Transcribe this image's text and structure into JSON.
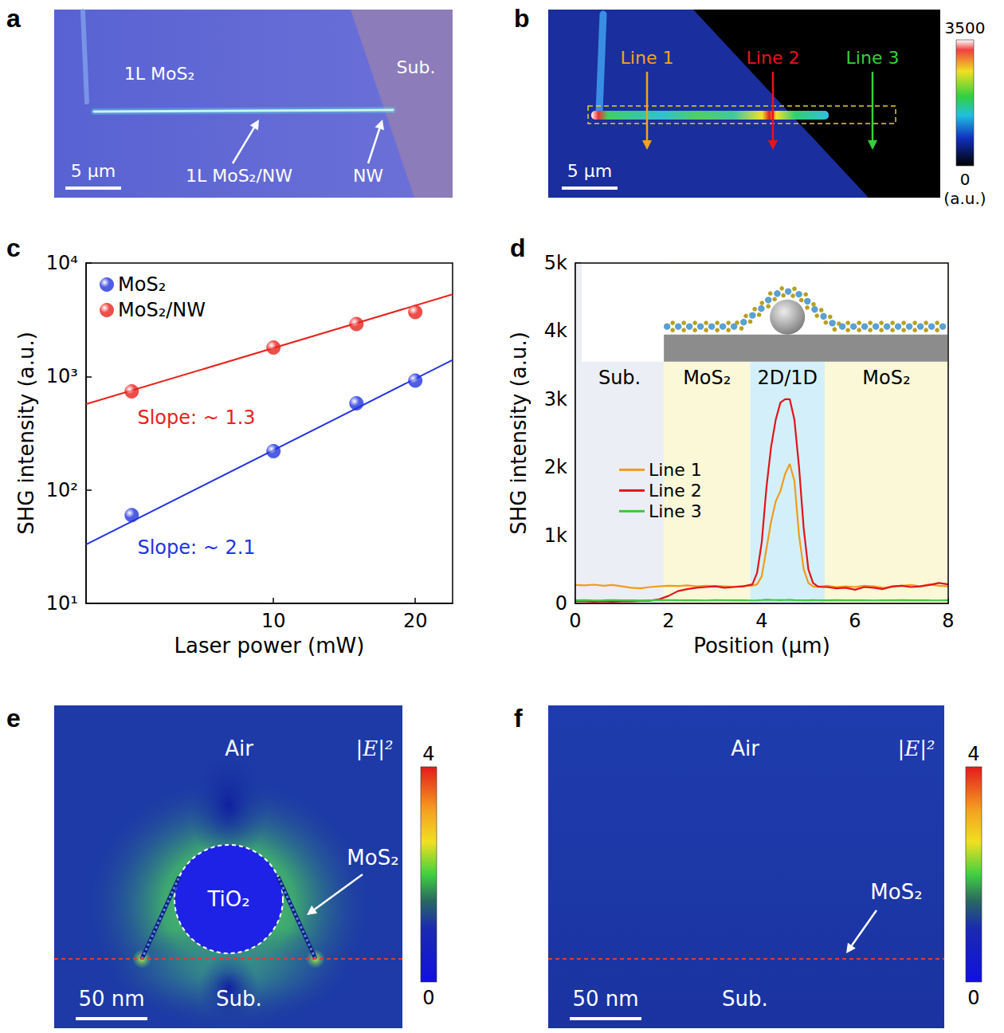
{
  "panel_a": {
    "panel": "a",
    "labels": {
      "layer": "1L MoS₂",
      "substrate": "Sub.",
      "heterostructure": "1L MoS₂/NW",
      "wire": "NW"
    },
    "scale_bar": "5 μm"
  },
  "panel_b": {
    "panel": "b",
    "lines": [
      {
        "name": "Line 1",
        "color": "#f5a21e"
      },
      {
        "name": "Line 2",
        "color": "#e8141c"
      },
      {
        "name": "Line 3",
        "color": "#38d03a"
      }
    ],
    "scale_bar": "5 μm",
    "colorbar": {
      "range": [
        0,
        3500
      ],
      "ticks": [
        0,
        3500
      ],
      "unit": "(a.u.)"
    }
  },
  "chart_data": [
    {
      "panel": "c",
      "type": "scatter",
      "log": true,
      "grid": false,
      "legend": "upper left",
      "x_label": "Laser power (mW)",
      "y_label": "SHG intensity (a.u.)",
      "xlim": [
        4,
        24
      ],
      "xticks": [
        10,
        20
      ],
      "ylim": [
        10,
        10000
      ],
      "yticks": [
        {
          "value": 10,
          "label": "10¹"
        },
        {
          "value": 100,
          "label": "10²"
        },
        {
          "value": 1000,
          "label": "10³"
        },
        {
          "value": 10000,
          "label": "10⁴"
        }
      ],
      "series": [
        {
          "name": "MoS₂",
          "color": "#2233e0",
          "marker": "circle",
          "x": [
            5,
            10,
            15,
            20
          ],
          "values": [
            60,
            220,
            580,
            920
          ]
        },
        {
          "name": "MoS₂/NW",
          "color": "#e8221c",
          "marker": "circle",
          "x": [
            5,
            10,
            15,
            20
          ],
          "values": [
            740,
            1800,
            2900,
            3700
          ]
        }
      ],
      "fits": [
        {
          "label": "Slope: ~ 1.3",
          "color": "#e8221c",
          "x": [
            4,
            24
          ],
          "values": [
            570,
            5300
          ]
        },
        {
          "label": "Slope: ~ 2.1",
          "color": "#2233e0",
          "x": [
            4,
            24
          ],
          "values": [
            33,
            1400
          ]
        }
      ]
    },
    {
      "panel": "d",
      "type": "line",
      "grid": false,
      "legend": "left",
      "x_label": "Position (μm)",
      "y_label": "SHG intensity (a.u.)",
      "xlim": [
        0,
        8
      ],
      "xticks": [
        0,
        2,
        4,
        6,
        8
      ],
      "ylim": [
        0,
        5000
      ],
      "yticks": [
        0,
        {
          "value": 1000,
          "label": "1k"
        },
        {
          "value": 2000,
          "label": "2k"
        },
        {
          "value": 3000,
          "label": "3k"
        },
        {
          "value": 4000,
          "label": "4k"
        },
        {
          "value": 5000,
          "label": "5k"
        }
      ],
      "regions": [
        {
          "label": "Sub.",
          "range": [
            0,
            1.9
          ],
          "color": "#eceef5"
        },
        {
          "label": "MoS₂",
          "range": [
            1.9,
            3.75
          ],
          "color": "#fbf8d8"
        },
        {
          "label": "2D/1D",
          "range": [
            3.75,
            5.35
          ],
          "color": "#d3f0fa"
        },
        {
          "label": "MoS₂",
          "range": [
            5.35,
            8
          ],
          "color": "#fbf8d8"
        }
      ],
      "x": [
        0,
        0.2,
        0.4,
        0.6,
        0.8,
        1,
        1.2,
        1.4,
        1.6,
        1.8,
        2,
        2.2,
        2.4,
        2.6,
        2.8,
        3,
        3.2,
        3.4,
        3.6,
        3.8,
        3.9,
        4,
        4.1,
        4.2,
        4.3,
        4.4,
        4.5,
        4.6,
        4.7,
        4.8,
        4.9,
        5,
        5.1,
        5.2,
        5.3,
        5.4,
        5.6,
        5.8,
        6,
        6.2,
        6.4,
        6.6,
        6.8,
        7,
        7.2,
        7.4,
        7.6,
        7.8,
        8
      ],
      "series": [
        {
          "name": "Line 1",
          "color": "#f39a1e",
          "values": [
            270,
            265,
            275,
            260,
            270,
            250,
            230,
            220,
            240,
            250,
            260,
            255,
            265,
            250,
            260,
            255,
            250,
            245,
            255,
            260,
            280,
            400,
            800,
            1200,
            1500,
            1650,
            1900,
            2050,
            1800,
            1000,
            500,
            300,
            250,
            240,
            250,
            260,
            240,
            250,
            240,
            260,
            250,
            230,
            240,
            260,
            270,
            250,
            280,
            260,
            250
          ]
        },
        {
          "name": "Line 2",
          "color": "#e3131b",
          "values": [
            30,
            30,
            25,
            30,
            25,
            30,
            30,
            35,
            40,
            60,
            110,
            180,
            210,
            230,
            240,
            250,
            230,
            240,
            250,
            280,
            450,
            900,
            1700,
            2300,
            2700,
            2950,
            3000,
            3000,
            2700,
            2000,
            1100,
            500,
            300,
            250,
            240,
            240,
            220,
            230,
            200,
            240,
            230,
            210,
            250,
            260,
            240,
            250,
            270,
            300,
            280
          ]
        },
        {
          "name": "Line 3",
          "color": "#3ec63e",
          "values": [
            45,
            48,
            44,
            46,
            50,
            47,
            45,
            43,
            46,
            48,
            50,
            47,
            45,
            46,
            44,
            48,
            47,
            45,
            46,
            44,
            46,
            50,
            55,
            52,
            50,
            48,
            50,
            52,
            49,
            47,
            45,
            46,
            48,
            47,
            45,
            46,
            48,
            45,
            47,
            46,
            44,
            47,
            45,
            48,
            46,
            47,
            45,
            44,
            46
          ]
        }
      ]
    }
  ],
  "panel_e": {
    "panel": "e",
    "labels": {
      "medium": "Air",
      "quantity": "|E|²",
      "particle": "TiO₂",
      "layer": "MoS₂",
      "substrate": "Sub."
    },
    "scale_bar": "50 nm",
    "colorbar": {
      "range": [
        0,
        4
      ],
      "ticks": [
        0,
        4
      ]
    }
  },
  "panel_f": {
    "panel": "f",
    "labels": {
      "medium": "Air",
      "quantity": "|E|²",
      "layer": "MoS₂",
      "substrate": "Sub."
    },
    "scale_bar": "50 nm",
    "colorbar": {
      "range": [
        0,
        4
      ],
      "ticks": [
        0,
        4
      ]
    }
  }
}
